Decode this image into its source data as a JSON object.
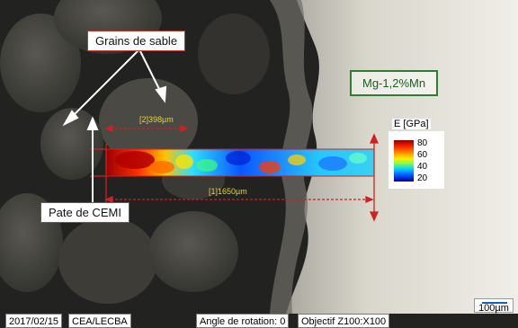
{
  "annotations": {
    "grains_label": "Grains de sable",
    "paste_label": "Pate de CEMI",
    "alloy_label": "Mg-1,2%Mn",
    "dim_short": "[2]398µm",
    "dim_long": "[1]1650µm"
  },
  "legend": {
    "title": "E [GPa]",
    "ticks": [
      "80",
      "60",
      "40",
      "20"
    ],
    "colors": {
      "high": "#8b0000",
      "mid": "#ffee00",
      "low": "#0000a0"
    }
  },
  "footer": {
    "date": "2017/02/15",
    "lab": "CEA/LECBA",
    "rotation": "Angle de rotation: 0",
    "objective": "Objectif Z100:X100"
  },
  "scale_bar": {
    "label": "100µm"
  },
  "colors": {
    "annotation_red": "#c0392b",
    "alloy_green": "#2e7d32",
    "dimension_yellow": "#e8d23a"
  }
}
